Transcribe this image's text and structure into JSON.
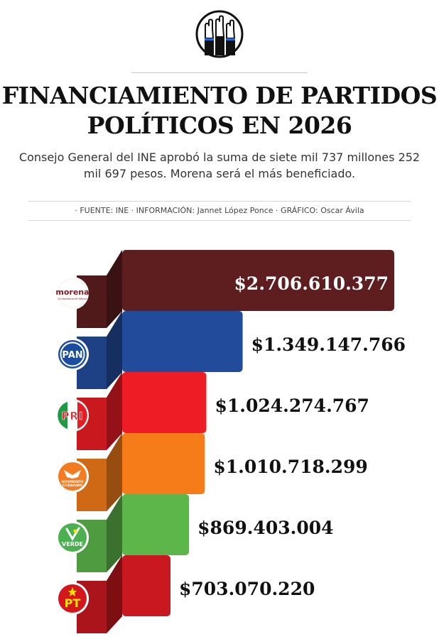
{
  "header": {
    "title_line1": "FINANCIAMIENTO DE PARTIDOS",
    "title_line2": "POLÍTICOS EN 2026",
    "subtitle_line1": "Consejo General del INE aprobó la suma de siete mil 737 millones 252",
    "subtitle_line2": "mil 697 pesos. Morena será el más beneficiado.",
    "credits": "· FUENTE: INE  · INFORMACIÓN: Jannet López Ponce · GRÁFICO: Oscar Ávila",
    "emblem_icon": "raised-hands-icon"
  },
  "chart_data": {
    "type": "bar",
    "orientation": "horizontal",
    "xlim": [
      0,
      2706610377
    ],
    "categories": [
      "morena",
      "PAN",
      "PRI",
      "MOVIMIENTO CIUDADANO",
      "VERDE",
      "PT"
    ],
    "values": [
      2706610377,
      1349147766,
      1024274767,
      1010718299,
      869403004,
      703070220
    ],
    "value_labels": [
      "$2.706.610.377",
      "$1.349.147.766",
      "$1.024.274.767",
      "$1.010.718.299",
      "$869.403.004",
      "$703.070.220"
    ],
    "colors": [
      "#5e1d1f",
      "#224c9b",
      "#ee1c25",
      "#f57c19",
      "#5db64a",
      "#c9181f"
    ],
    "logo_texts": [
      {
        "main": "morena",
        "sub": "La esperanza de México"
      },
      {
        "main": "PAN",
        "sub": ""
      },
      {
        "main": "PRI",
        "sub": ""
      },
      {
        "main": "MOVIMIENTO",
        "sub": "CIUDADANO"
      },
      {
        "main": "VERDE",
        "sub": ""
      },
      {
        "main": "PT",
        "sub": ""
      }
    ]
  }
}
